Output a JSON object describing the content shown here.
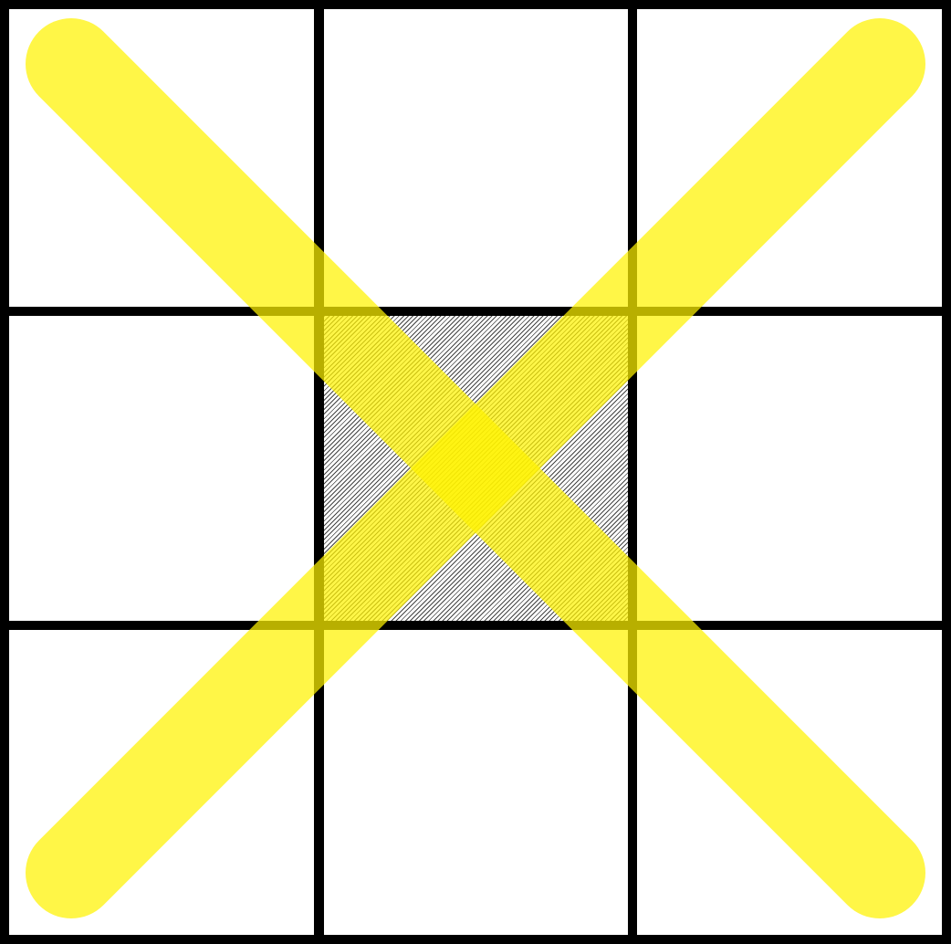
{
  "board": {
    "rows": 3,
    "cols": 3,
    "cells": [
      {
        "index": 0,
        "state": "empty"
      },
      {
        "index": 1,
        "state": "empty"
      },
      {
        "index": 2,
        "state": "empty"
      },
      {
        "index": 3,
        "state": "empty"
      },
      {
        "index": 4,
        "state": "hatched"
      },
      {
        "index": 5,
        "state": "empty"
      },
      {
        "index": 6,
        "state": "empty"
      },
      {
        "index": 7,
        "state": "empty"
      },
      {
        "index": 8,
        "state": "empty"
      }
    ],
    "highlighted_cell": 4,
    "diagonals_marked": [
      "main-diagonal",
      "anti-diagonal"
    ]
  },
  "colors": {
    "grid_line": "#000000",
    "cell_background": "#ffffff",
    "hatch": "#444444",
    "highlight": "#fff200"
  }
}
